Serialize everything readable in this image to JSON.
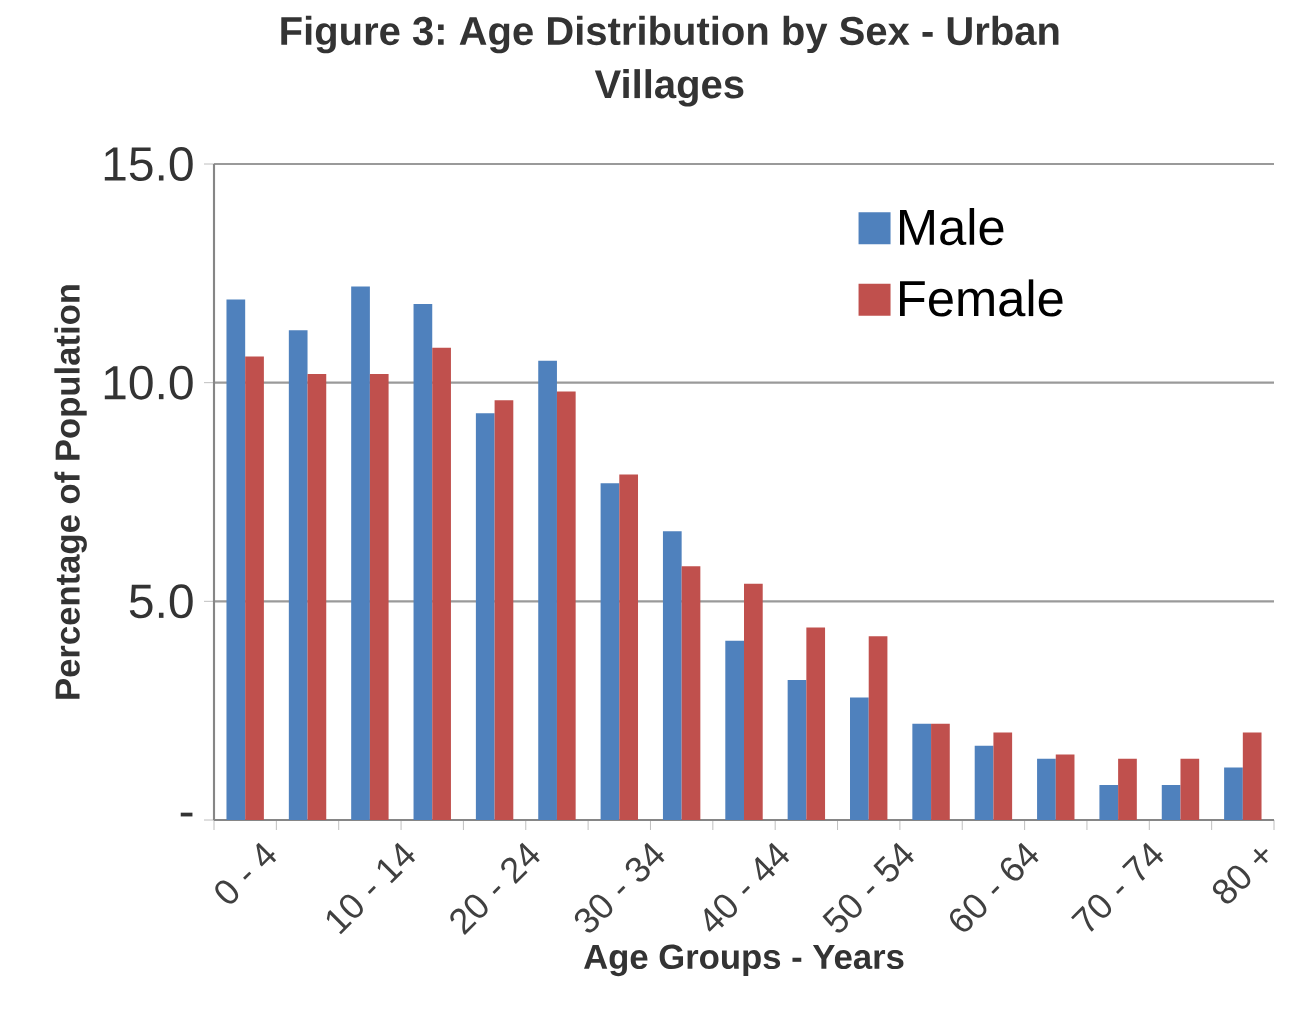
{
  "chart_data": {
    "type": "bar",
    "title": "Figure 3: Age Distribution by Sex - Urban Villages",
    "xlabel": "Age Groups - Years",
    "ylabel": "Percentage of Population",
    "categories": [
      "0 - 4",
      null,
      "10 - 14",
      null,
      "20 - 24",
      null,
      "30 - 34",
      null,
      "40 - 44",
      null,
      "50 - 54",
      null,
      "60 - 64",
      null,
      "70 - 74",
      null,
      "80 +"
    ],
    "series": [
      {
        "name": "Male",
        "color": "#4f81bd",
        "values": [
          11.9,
          11.2,
          12.2,
          11.8,
          9.3,
          10.5,
          7.7,
          6.6,
          4.1,
          3.2,
          2.8,
          2.2,
          1.7,
          1.4,
          0.8,
          0.8,
          1.2
        ]
      },
      {
        "name": "Female",
        "color": "#c0504d",
        "values": [
          10.6,
          10.2,
          10.2,
          10.8,
          9.6,
          9.8,
          7.9,
          5.8,
          5.4,
          4.4,
          4.2,
          2.2,
          2.0,
          1.5,
          1.4,
          1.4,
          2.0
        ]
      }
    ],
    "ylim": [
      0,
      15
    ],
    "yticks": [
      {
        "value": 0,
        "label": "-"
      },
      {
        "value": 5,
        "label": "5.0"
      },
      {
        "value": 10,
        "label": "10.0"
      },
      {
        "value": 15,
        "label": "15.0"
      }
    ],
    "grid": "y",
    "legend": "top right"
  }
}
